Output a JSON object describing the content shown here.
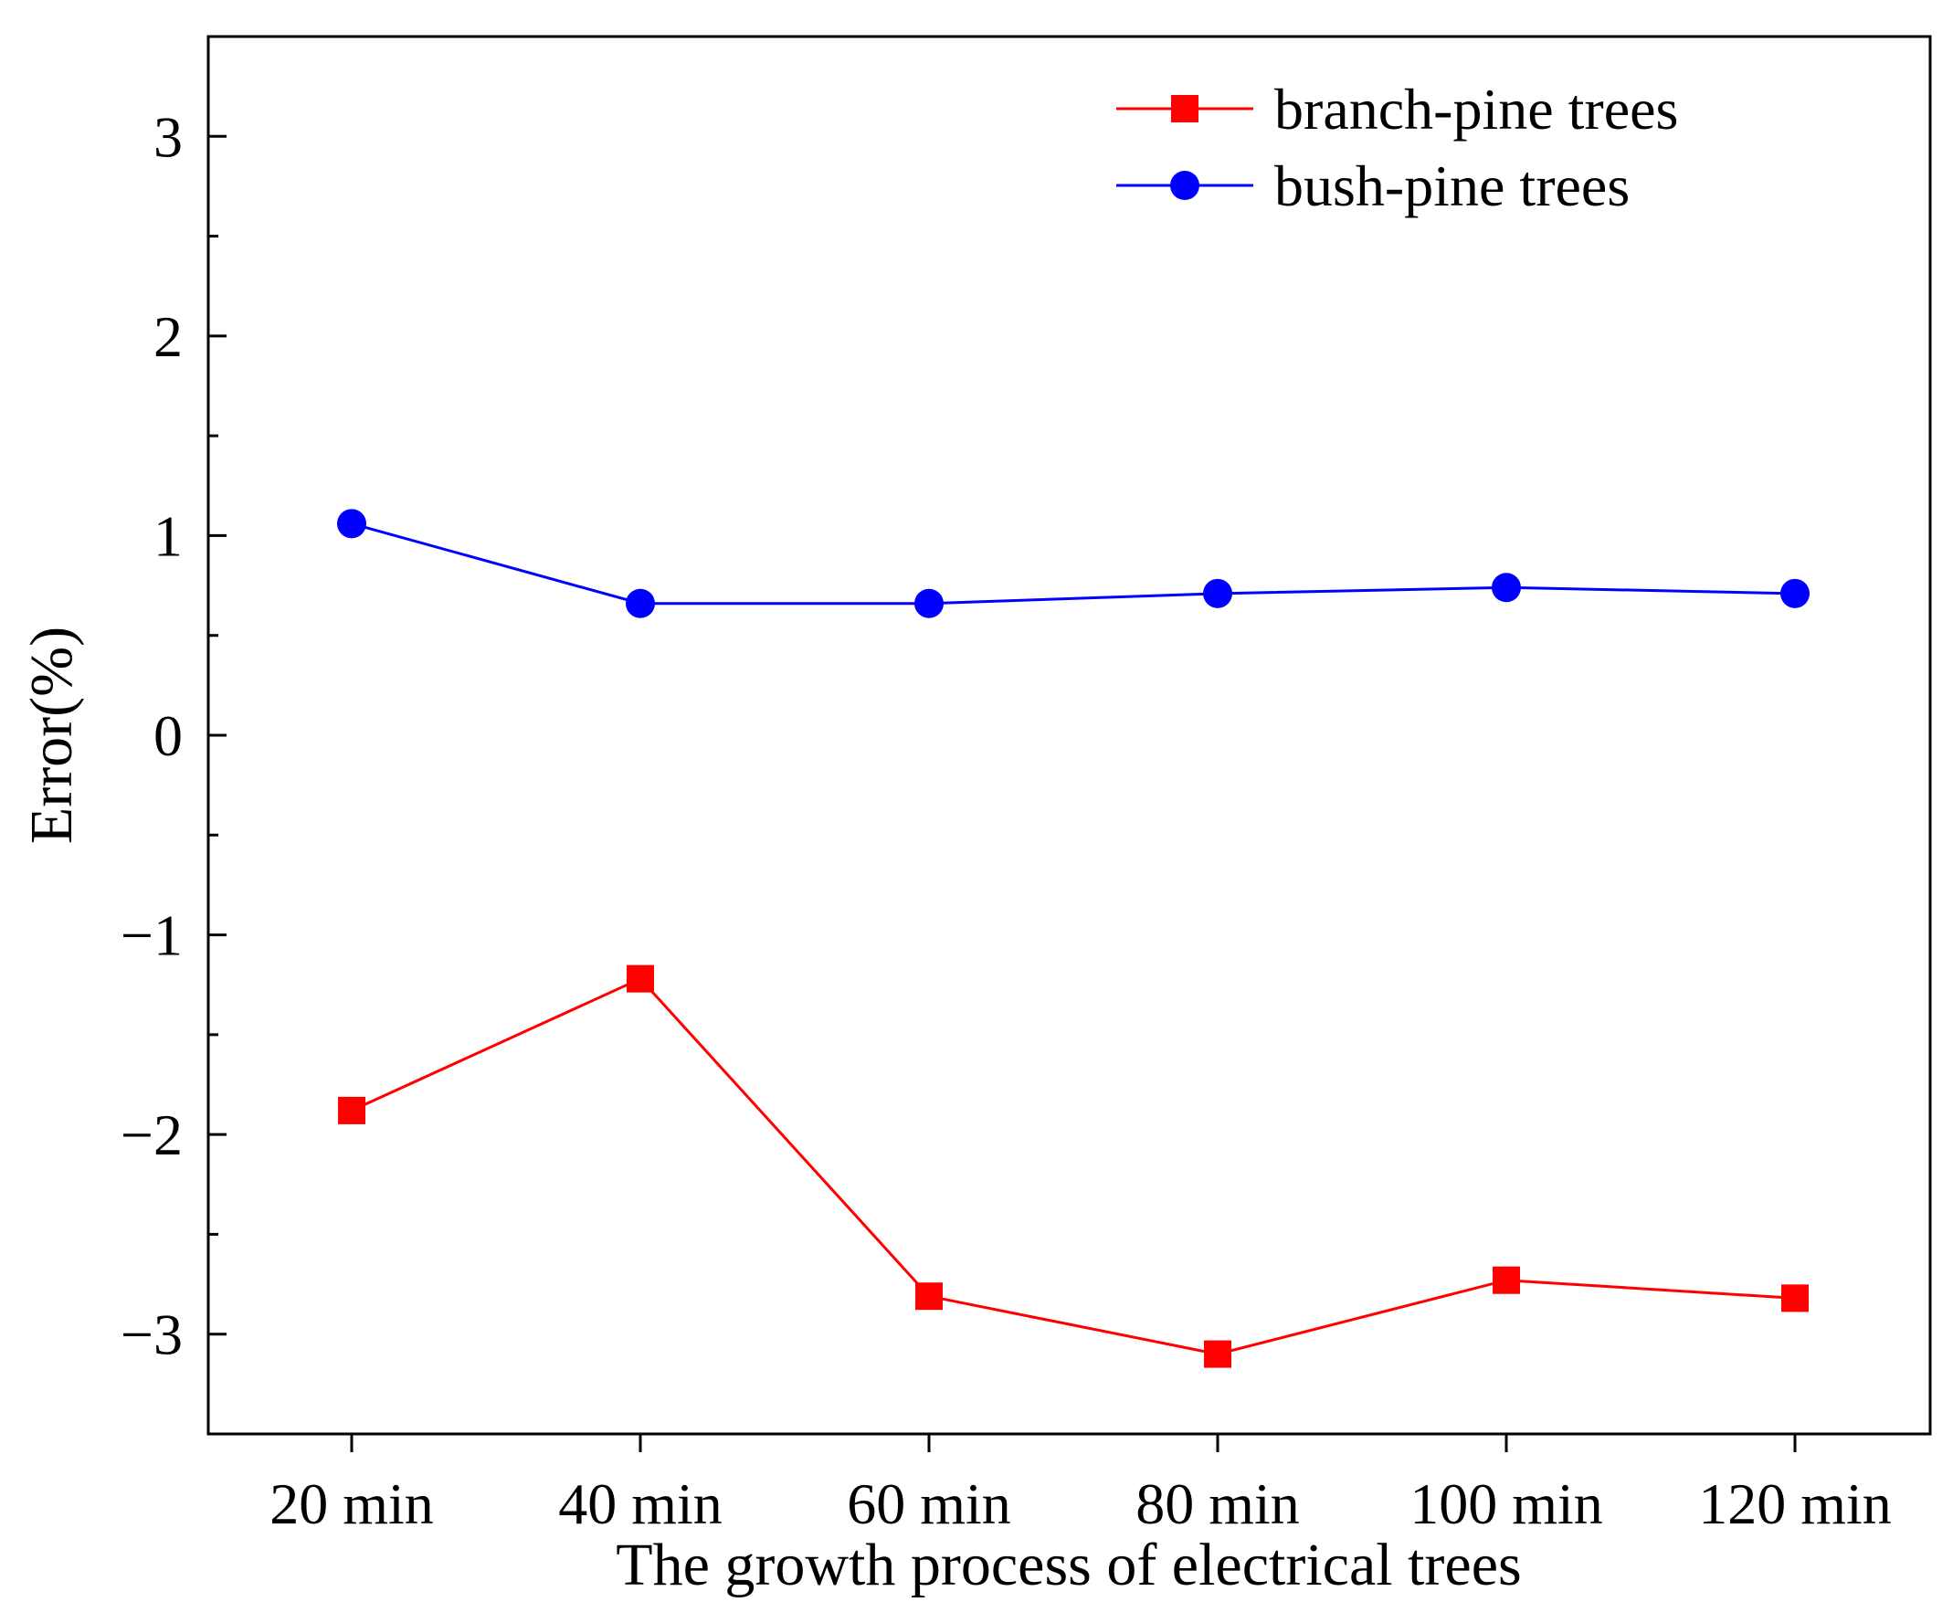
{
  "chart_data": {
    "type": "line",
    "title": "",
    "xlabel": "The growth process of electrical trees",
    "ylabel": "Error(%)",
    "categories": [
      "20 min",
      "40 min",
      "60 min",
      "80 min",
      "100 min",
      "120 min"
    ],
    "ylim": [
      -3.5,
      3.5
    ],
    "yticks": [
      -3,
      -2,
      -1,
      0,
      1,
      2,
      3
    ],
    "ytick_labels": [
      "−3",
      "−2",
      "−1",
      "0",
      "1",
      "2",
      "3"
    ],
    "grid": false,
    "legend_position": "top-right",
    "series": [
      {
        "name": "branch-pine trees",
        "color": "#ff0000",
        "marker": "square",
        "values": [
          -1.88,
          -1.22,
          -2.81,
          -3.1,
          -2.73,
          -2.82
        ]
      },
      {
        "name": "bush-pine trees",
        "color": "#0000ff",
        "marker": "circle",
        "values": [
          1.06,
          0.66,
          0.66,
          0.71,
          0.74,
          0.71
        ]
      }
    ]
  }
}
